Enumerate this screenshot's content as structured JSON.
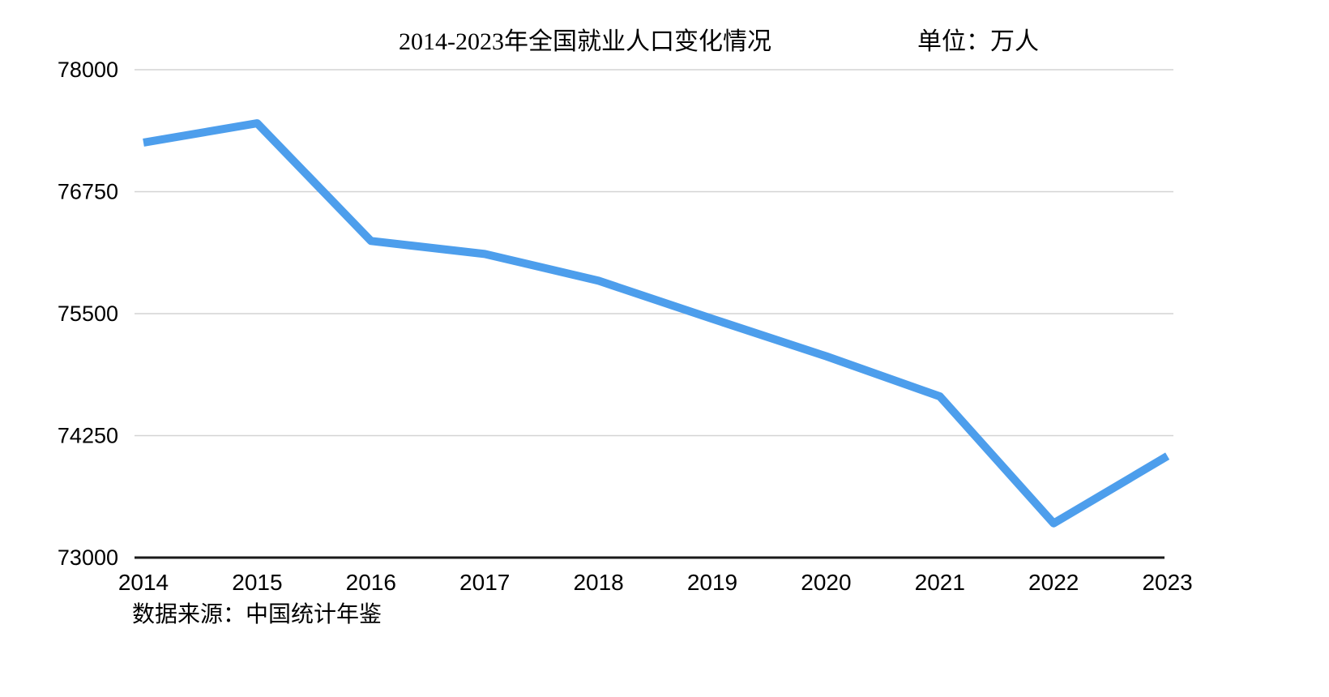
{
  "header": {
    "title": "2014-2023年全国就业人口变化情况",
    "unit_label": "单位：万人"
  },
  "footer": {
    "source": "数据来源：中国统计年鉴"
  },
  "chart_data": {
    "type": "line",
    "title": "2014-2023年全国就业人口变化情况",
    "unit": "万人",
    "categories": [
      "2014",
      "2015",
      "2016",
      "2017",
      "2018",
      "2019",
      "2020",
      "2021",
      "2022",
      "2023"
    ],
    "values": [
      77253,
      77451,
      76245,
      76111,
      75837,
      75447,
      75064,
      74652,
      73351,
      74041
    ],
    "yticks": [
      73000,
      74250,
      75500,
      76750,
      78000
    ],
    "ylim": [
      73000,
      78000
    ],
    "xlabel": "",
    "ylabel": "",
    "grid": true,
    "legend_position": "none",
    "line_color": "#4D9EEC",
    "grid_color": "#D4D4D4",
    "axis_color": "#1A1A1A",
    "source": "数据来源：中国统计年鉴"
  }
}
